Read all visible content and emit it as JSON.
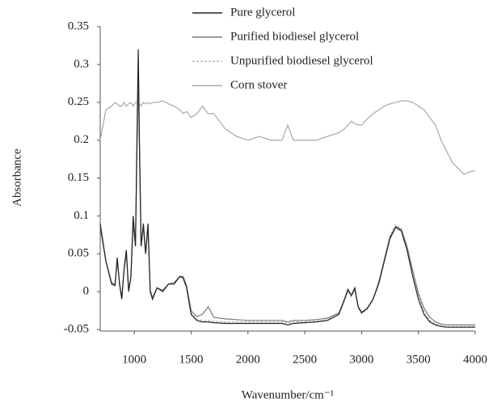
{
  "chart_data": {
    "type": "line",
    "x_label": "Wavenumber/cm⁻¹",
    "y_label": "Absorbance",
    "xlim": [
      700,
      4000
    ],
    "xticks": [
      1000,
      1500,
      2000,
      2500,
      3000,
      3500,
      4000
    ],
    "ylim": [
      -0.05,
      0.35
    ],
    "yticks": [
      -0.05,
      0,
      0.05,
      0.1,
      0.15,
      0.2,
      0.25,
      0.3,
      0.35
    ],
    "x": [
      700,
      750,
      800,
      830,
      850,
      870,
      890,
      910,
      930,
      950,
      970,
      990,
      1010,
      1025,
      1035,
      1045,
      1060,
      1080,
      1100,
      1120,
      1140,
      1160,
      1200,
      1250,
      1300,
      1350,
      1400,
      1430,
      1460,
      1500,
      1550,
      1600,
      1650,
      1700,
      1800,
      1900,
      2000,
      2100,
      2200,
      2300,
      2350,
      2400,
      2500,
      2600,
      2700,
      2800,
      2850,
      2880,
      2910,
      2940,
      2970,
      3000,
      3050,
      3100,
      3150,
      3200,
      3250,
      3300,
      3350,
      3400,
      3450,
      3500,
      3550,
      3600,
      3650,
      3700,
      3750,
      3800,
      3850,
      3900,
      3950,
      4000
    ],
    "series": [
      {
        "name": "Pure glycerol",
        "color": "#222222",
        "dashed": false,
        "values": [
          0.09,
          0.04,
          0.01,
          0.008,
          0.045,
          0.01,
          -0.01,
          0.03,
          0.055,
          0.0,
          0.02,
          0.1,
          0.06,
          0.22,
          0.32,
          0.2,
          0.06,
          0.09,
          0.05,
          0.09,
          0.0,
          -0.01,
          0.005,
          0.0,
          0.01,
          0.01,
          0.02,
          0.018,
          0.005,
          -0.03,
          -0.038,
          -0.04,
          -0.04,
          -0.041,
          -0.042,
          -0.042,
          -0.042,
          -0.042,
          -0.042,
          -0.042,
          -0.044,
          -0.042,
          -0.041,
          -0.04,
          -0.038,
          -0.03,
          -0.01,
          0.003,
          -0.005,
          0.005,
          -0.02,
          -0.028,
          -0.022,
          -0.01,
          0.01,
          0.04,
          0.07,
          0.085,
          0.08,
          0.055,
          0.02,
          -0.01,
          -0.03,
          -0.04,
          -0.044,
          -0.046,
          -0.047,
          -0.047,
          -0.047,
          -0.047,
          -0.047,
          -0.047
        ]
      },
      {
        "name": "Purified biodiesel glycerol",
        "color": "#7a7a7a",
        "dashed": false,
        "values": [
          0.085,
          0.04,
          0.012,
          0.01,
          0.04,
          0.012,
          -0.008,
          0.028,
          0.05,
          0.002,
          0.02,
          0.09,
          0.06,
          0.2,
          0.29,
          0.19,
          0.06,
          0.085,
          0.05,
          0.085,
          0.002,
          -0.008,
          0.005,
          0.002,
          0.01,
          0.012,
          0.02,
          0.02,
          0.008,
          -0.025,
          -0.033,
          -0.03,
          -0.02,
          -0.034,
          -0.036,
          -0.037,
          -0.038,
          -0.038,
          -0.038,
          -0.038,
          -0.04,
          -0.038,
          -0.038,
          -0.037,
          -0.035,
          -0.028,
          -0.01,
          0.002,
          -0.005,
          0.003,
          -0.02,
          -0.027,
          -0.022,
          -0.01,
          0.012,
          0.042,
          0.072,
          0.086,
          0.082,
          0.06,
          0.028,
          -0.002,
          -0.022,
          -0.034,
          -0.04,
          -0.043,
          -0.044,
          -0.044,
          -0.044,
          -0.044,
          -0.044,
          -0.044
        ]
      },
      {
        "name": "Unpurified biodiesel glycerol",
        "color": "#b5b5b5",
        "dashed": true,
        "values": [
          0.088,
          0.042,
          0.01,
          0.009,
          0.042,
          0.01,
          -0.01,
          0.03,
          0.052,
          0.0,
          0.02,
          0.095,
          0.06,
          0.21,
          0.31,
          0.2,
          0.06,
          0.088,
          0.05,
          0.088,
          0.0,
          -0.01,
          0.005,
          0.0,
          0.01,
          0.01,
          0.02,
          0.018,
          0.006,
          -0.028,
          -0.036,
          -0.038,
          -0.038,
          -0.039,
          -0.04,
          -0.04,
          -0.04,
          -0.04,
          -0.04,
          -0.04,
          -0.042,
          -0.04,
          -0.04,
          -0.039,
          -0.037,
          -0.03,
          -0.012,
          0.0,
          -0.007,
          0.002,
          -0.022,
          -0.029,
          -0.024,
          -0.012,
          0.012,
          0.043,
          0.074,
          0.088,
          0.084,
          0.06,
          0.026,
          -0.005,
          -0.026,
          -0.038,
          -0.043,
          -0.045,
          -0.046,
          -0.046,
          -0.046,
          -0.046,
          -0.046,
          -0.046
        ]
      },
      {
        "name": "Corn stover",
        "color": "#a8a8a8",
        "dashed": false,
        "values": [
          0.2,
          0.24,
          0.245,
          0.25,
          0.248,
          0.245,
          0.245,
          0.25,
          0.245,
          0.248,
          0.25,
          0.245,
          0.25,
          0.25,
          0.245,
          0.248,
          0.245,
          0.25,
          0.248,
          0.25,
          0.248,
          0.25,
          0.25,
          0.252,
          0.248,
          0.245,
          0.24,
          0.235,
          0.238,
          0.23,
          0.235,
          0.245,
          0.235,
          0.235,
          0.215,
          0.205,
          0.2,
          0.205,
          0.2,
          0.2,
          0.22,
          0.2,
          0.2,
          0.2,
          0.205,
          0.21,
          0.215,
          0.22,
          0.225,
          0.222,
          0.22,
          0.22,
          0.228,
          0.235,
          0.24,
          0.245,
          0.248,
          0.25,
          0.252,
          0.252,
          0.25,
          0.245,
          0.24,
          0.23,
          0.22,
          0.2,
          0.185,
          0.17,
          0.163,
          0.155,
          0.158,
          0.16
        ]
      }
    ]
  }
}
